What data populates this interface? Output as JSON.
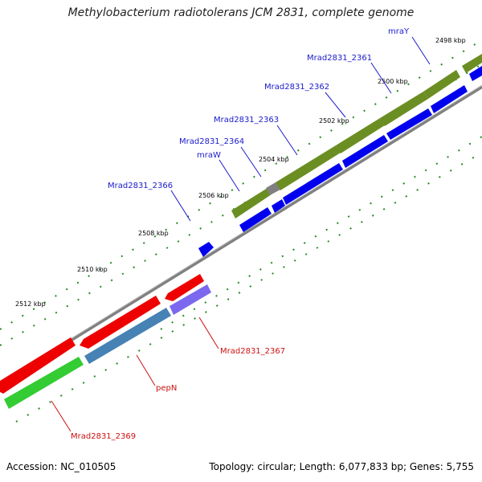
{
  "title": "Methylobacterium radiotolerans JCM 2831, complete genome",
  "footer": {
    "accession": "Accession: NC_010505",
    "summary": "Topology: circular; Length: 6,077,833 bp; Genes: 5,755"
  },
  "scale_labels": [
    "2498 kbp",
    "2500 kbp",
    "2502 kbp",
    "2504 kbp",
    "2506 kbp",
    "2508 kbp",
    "2510 kbp",
    "2512 kbp"
  ],
  "gene_labels": {
    "mraY": "mraY",
    "mrad2361": "Mrad2831_2361",
    "mrad2362": "Mrad2831_2362",
    "mrad2363": "Mrad2831_2363",
    "mrad2364": "Mrad2831_2364",
    "mraW": "mraW",
    "mrad2366": "Mrad2831_2366",
    "mrad2367": "Mrad2831_2367",
    "pepN": "pepN",
    "mrad2369": "Mrad2831_2369"
  },
  "colors": {
    "forward_cds": "#0000ee",
    "forward_cog": "#6b8e23",
    "reverse_cds": "#ee0000",
    "reverse_cog_green": "#33cc33",
    "reverse_cog_steel": "#4682b4",
    "reverse_cog_purple": "#7b68ee",
    "backbone": "#808080",
    "ticks": "#228b22"
  }
}
